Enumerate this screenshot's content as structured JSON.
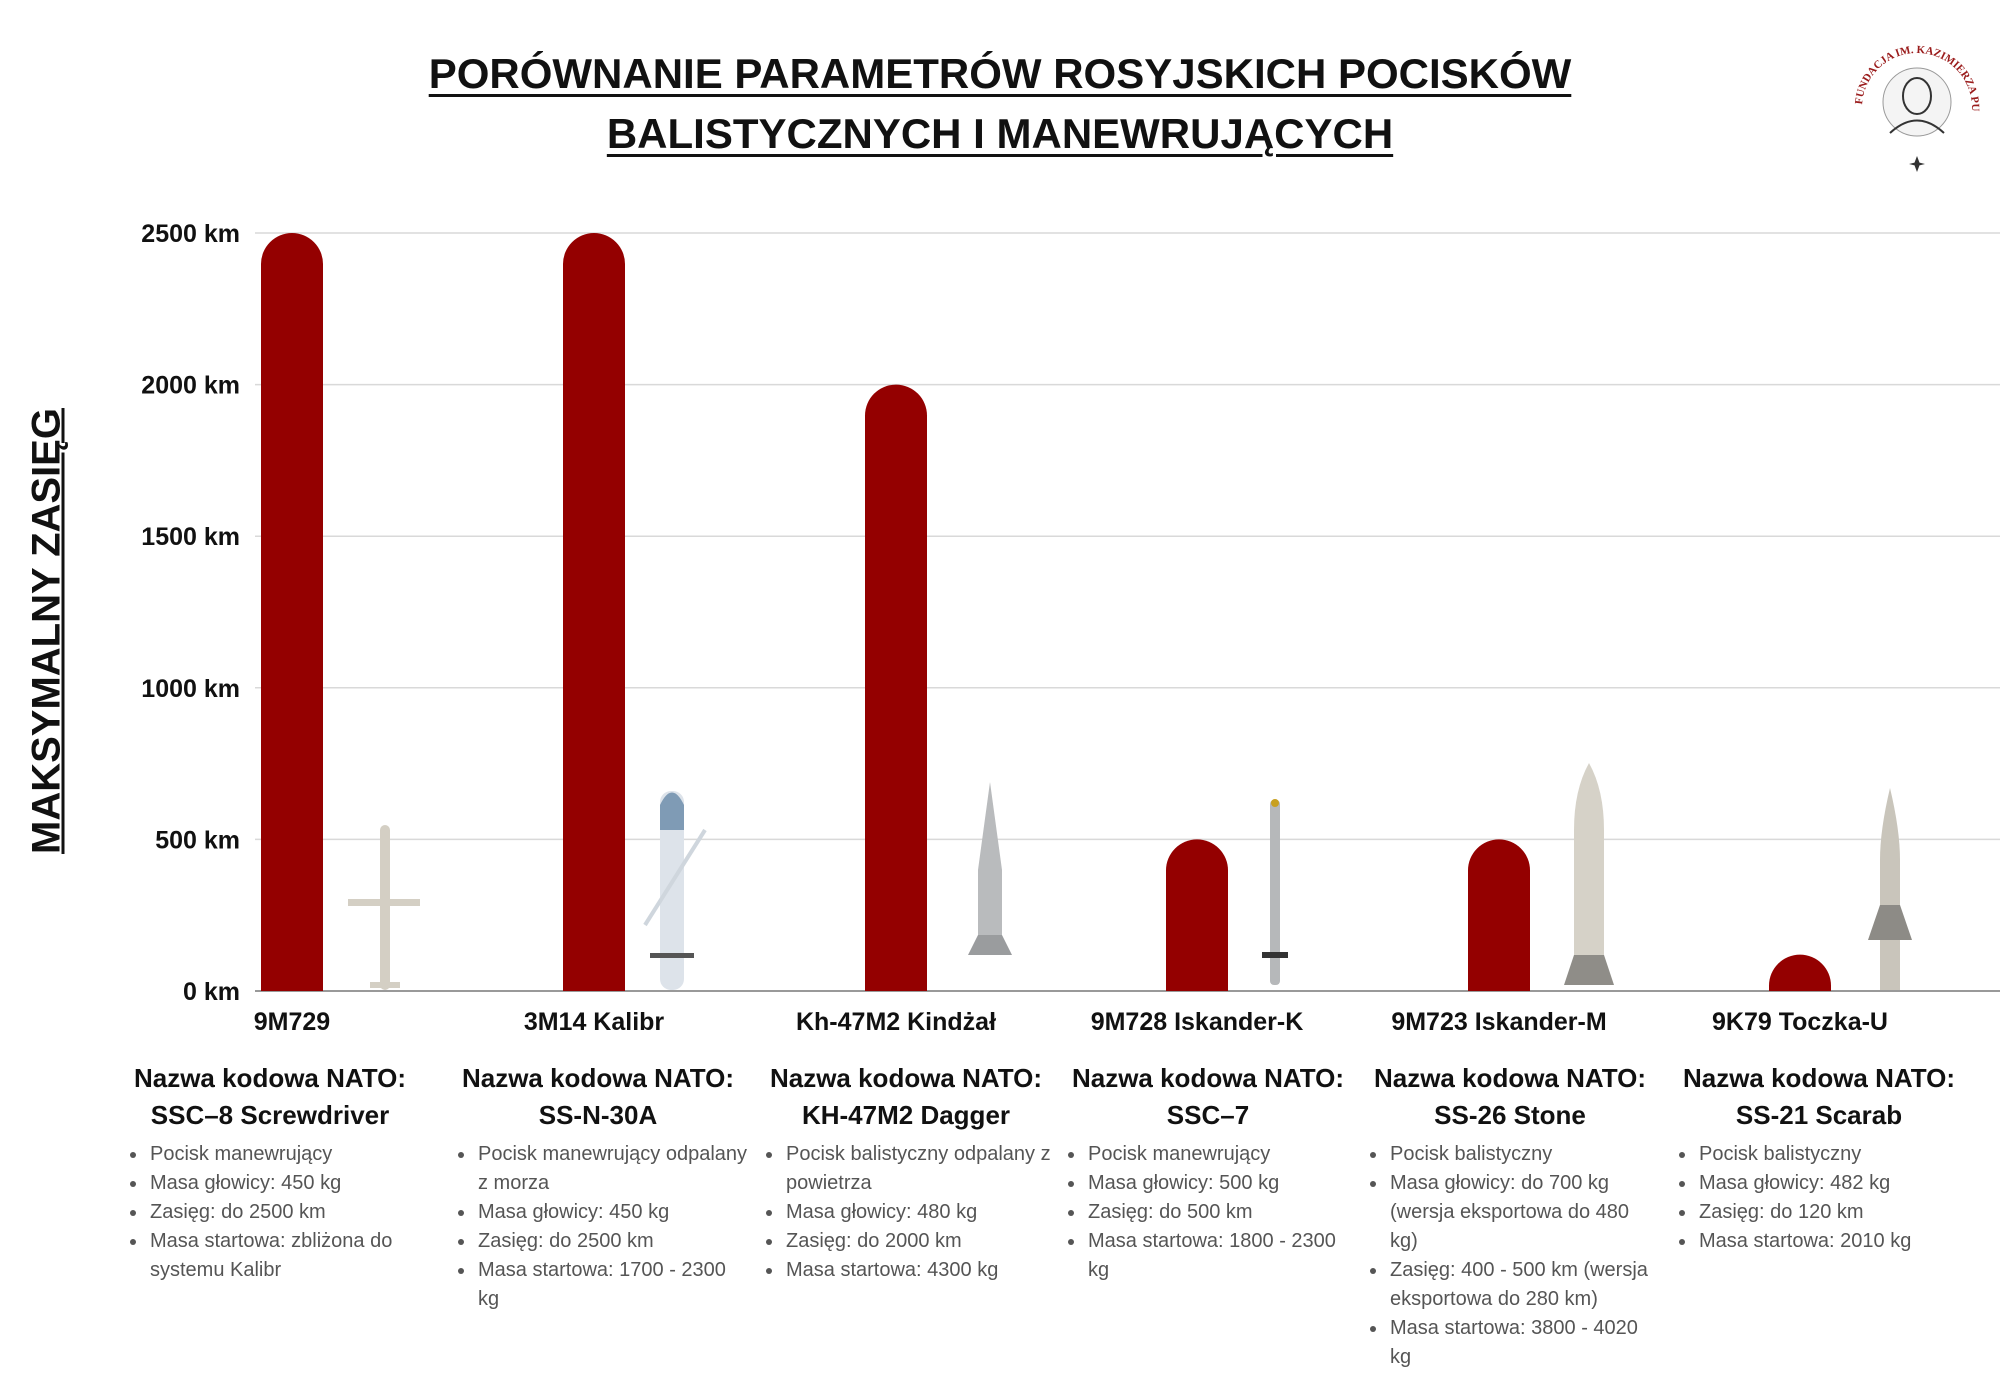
{
  "title": {
    "line1": "PORÓWNANIE PARAMETRÓW ROSYJSKICH POCISKÓW",
    "line2": "BALISTYCZNYCH I MANEWRUJĄCYCH"
  },
  "logo": {
    "text": "FUNDACJA IM. KAZIMIERZA PUŁASKIEGO"
  },
  "colors": {
    "bar": "#940000",
    "grid": "#d9d9d9",
    "axis": "#999999"
  },
  "chart_data": {
    "type": "bar",
    "title": "",
    "ylabel": "MAKSYMALNY ZASIĘG",
    "xlabel": "",
    "ylim": [
      0,
      2500
    ],
    "yticks": [
      0,
      500,
      1000,
      1500,
      2000,
      2500
    ],
    "ytick_labels": [
      "0 km",
      "500 km",
      "1000 km",
      "1500 km",
      "2000 km",
      "2500 km"
    ],
    "grid": true,
    "categories": [
      "9M729",
      "3M14 Kalibr",
      "Kh-47M2 Kindżał",
      "9M728 Iskander-K",
      "9M723 Iskander-M",
      "9K79 Toczka-U"
    ],
    "values": [
      2500,
      2500,
      2000,
      500,
      500,
      120
    ],
    "unit": "km"
  },
  "missiles": [
    {
      "nato_label": "Nazwa kodowa NATO:",
      "nato_name": "SSC–8 Screwdriver",
      "details": [
        "Pocisk manewrujący",
        "Masa głowicy: 450 kg",
        "Zasięg: do 2500 km",
        "Masa startowa: zbliżona do systemu Kalibr"
      ]
    },
    {
      "nato_label": "Nazwa kodowa NATO:",
      "nato_name": "SS-N-30A",
      "details": [
        "Pocisk manewrujący odpalany z morza",
        "Masa głowicy: 450 kg",
        "Zasięg: do 2500 km",
        "Masa startowa: 1700 - 2300 kg"
      ]
    },
    {
      "nato_label": "Nazwa kodowa NATO:",
      "nato_name": "KH-47M2 Dagger",
      "details": [
        "Pocisk balistyczny odpalany z powietrza",
        "Masa głowicy: 480 kg",
        "Zasięg: do 2000 km",
        "Masa startowa: 4300 kg"
      ]
    },
    {
      "nato_label": "Nazwa kodowa NATO:",
      "nato_name": "SSC–7",
      "details": [
        "Pocisk manewrujący",
        "Masa głowicy: 500 kg",
        "Zasięg: do 500 km",
        "Masa startowa: 1800 - 2300 kg"
      ]
    },
    {
      "nato_label": "Nazwa kodowa NATO:",
      "nato_name": "SS-26 Stone",
      "details": [
        "Pocisk balistyczny",
        "Masa głowicy: do 700 kg (wersja eksportowa do 480 kg)",
        "Zasięg: 400 - 500 km (wersja eksportowa do 280 km)",
        "Masa startowa: 3800 - 4020 kg"
      ]
    },
    {
      "nato_label": "Nazwa kodowa NATO:",
      "nato_name": "SS-21 Scarab",
      "details": [
        "Pocisk balistyczny",
        "Masa głowicy: 482 kg",
        "Zasięg: do 120 km",
        "Masa startowa: 2010 kg"
      ]
    }
  ]
}
